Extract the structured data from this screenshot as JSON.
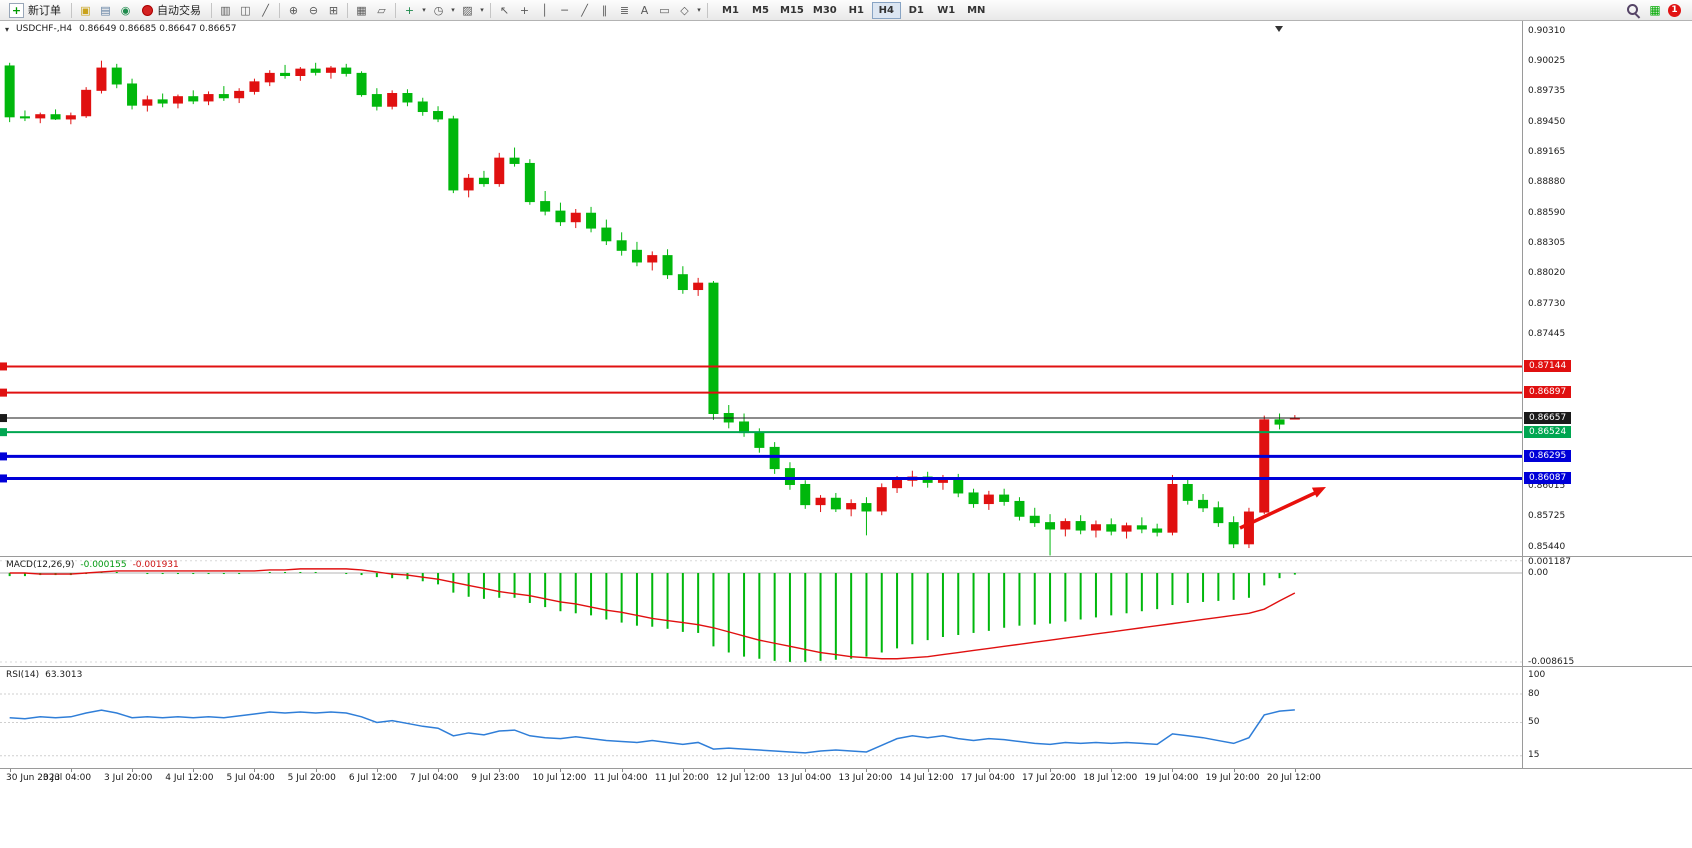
{
  "toolbar": {
    "new_order_label": "新订单",
    "autotrading_label": "自动交易",
    "timeframes": [
      "M1",
      "M5",
      "M15",
      "M30",
      "H1",
      "H4",
      "D1",
      "W1",
      "MN"
    ],
    "active_timeframe": "H4",
    "notification_count": "1"
  },
  "icons": {
    "new_order_plus": "+",
    "yellow_box": "▣",
    "printer": "▤",
    "refresh": "◉",
    "bar_chart": "▥",
    "candlestick_chart": "◫",
    "line_chart": "╱",
    "zoom_in": "⊕",
    "zoom_out": "⊖",
    "tile_windows": "⊞",
    "arrange_windows": "▦",
    "cascade_windows": "▱",
    "indicators_add": "+",
    "periods_clock": "◷",
    "templates": "▨",
    "cursor": "↖",
    "crosshair": "+",
    "vertical_line": "│",
    "horizontal_line": "─",
    "trendline": "╱",
    "channel": "∥",
    "fibonacci": "≣",
    "text_tool": "A",
    "label_tool": "▭",
    "shapes": "◇",
    "dropdown": "▾",
    "expand": "▾",
    "mini_chart": "▦",
    "shift_marker": "▼"
  },
  "chart": {
    "title": "USDCHF-,H4",
    "quote_ohlc": "0.86649 0.86685 0.86647 0.86657"
  },
  "chart_data": {
    "type": "candlestick",
    "symbol": "USDCHF-",
    "timeframe": "H4",
    "ohlc_current": {
      "open": 0.86649,
      "high": 0.86685,
      "low": 0.86647,
      "close": 0.86657
    },
    "colors": {
      "bull": "#e01010",
      "bear": "#00b70c"
    },
    "price_axis": {
      "max": 0.9031,
      "min": 0.8544,
      "labels": [
        "0.90310",
        "0.90025",
        "0.89735",
        "0.89450",
        "0.89165",
        "0.88880",
        "0.88590",
        "0.88305",
        "0.88020",
        "0.87730",
        "0.87445",
        "0.86015",
        "0.85725",
        "0.85440"
      ]
    },
    "levels": [
      {
        "price": 0.87144,
        "label": "0.87144",
        "color": "#e01010",
        "width": 2
      },
      {
        "price": 0.86897,
        "label": "0.86897",
        "color": "#e01010",
        "width": 2
      },
      {
        "price": 0.86657,
        "label": "0.86657",
        "color": "#1a1a1a",
        "width": 1
      },
      {
        "price": 0.86524,
        "label": "0.86524",
        "color": "#00a651",
        "width": 2
      },
      {
        "price": 0.86295,
        "label": "0.86295",
        "color": "#0000d8",
        "width": 3
      },
      {
        "price": 0.86087,
        "label": "0.86087",
        "color": "#0000d8",
        "width": 3
      }
    ],
    "time_labels": [
      "30 Jun 2023",
      "3 Jul 04:00",
      "3 Jul 20:00",
      "4 Jul 12:00",
      "5 Jul 04:00",
      "5 Jul 20:00",
      "6 Jul 12:00",
      "7 Jul 04:00",
      "9 Jul 23:00",
      "10 Jul 12:00",
      "11 Jul 04:00",
      "11 Jul 20:00",
      "12 Jul 12:00",
      "13 Jul 04:00",
      "13 Jul 20:00",
      "14 Jul 12:00",
      "17 Jul 04:00",
      "17 Jul 20:00",
      "18 Jul 12:00",
      "19 Jul 04:00",
      "19 Jul 20:00",
      "20 Jul 12:00"
    ],
    "candles": [
      [
        0.8998,
        0.9001,
        0.8945,
        0.895
      ],
      [
        0.895,
        0.8956,
        0.8946,
        0.8949
      ],
      [
        0.8949,
        0.8954,
        0.8944,
        0.8952
      ],
      [
        0.8952,
        0.8957,
        0.8947,
        0.8948
      ],
      [
        0.8948,
        0.8954,
        0.8943,
        0.8951
      ],
      [
        0.8951,
        0.8978,
        0.8949,
        0.8975
      ],
      [
        0.8975,
        0.9003,
        0.8972,
        0.8996
      ],
      [
        0.8996,
        0.9,
        0.8977,
        0.8981
      ],
      [
        0.8981,
        0.8986,
        0.8957,
        0.8961
      ],
      [
        0.8961,
        0.897,
        0.8955,
        0.8966
      ],
      [
        0.8966,
        0.8972,
        0.8959,
        0.8963
      ],
      [
        0.8963,
        0.8971,
        0.8958,
        0.8969
      ],
      [
        0.8969,
        0.8975,
        0.8962,
        0.8965
      ],
      [
        0.8965,
        0.8974,
        0.8961,
        0.8971
      ],
      [
        0.8971,
        0.8979,
        0.8965,
        0.8968
      ],
      [
        0.8968,
        0.8977,
        0.8963,
        0.8974
      ],
      [
        0.8974,
        0.8986,
        0.8971,
        0.8983
      ],
      [
        0.8983,
        0.8994,
        0.8979,
        0.8991
      ],
      [
        0.8991,
        0.8999,
        0.8986,
        0.8989
      ],
      [
        0.8989,
        0.8997,
        0.8984,
        0.8995
      ],
      [
        0.8995,
        0.9001,
        0.8989,
        0.8992
      ],
      [
        0.8992,
        0.8998,
        0.8986,
        0.8996
      ],
      [
        0.8996,
        0.9,
        0.8988,
        0.8991
      ],
      [
        0.8991,
        0.8993,
        0.8969,
        0.8971
      ],
      [
        0.8971,
        0.8977,
        0.8956,
        0.896
      ],
      [
        0.896,
        0.8975,
        0.8957,
        0.8972
      ],
      [
        0.8972,
        0.8976,
        0.896,
        0.8964
      ],
      [
        0.8964,
        0.8968,
        0.8951,
        0.8955
      ],
      [
        0.8955,
        0.896,
        0.8945,
        0.8948
      ],
      [
        0.8948,
        0.8951,
        0.8878,
        0.8881
      ],
      [
        0.8881,
        0.8896,
        0.8874,
        0.8892
      ],
      [
        0.8892,
        0.8899,
        0.8884,
        0.8887
      ],
      [
        0.8887,
        0.8916,
        0.8884,
        0.8911
      ],
      [
        0.8911,
        0.8921,
        0.8903,
        0.8906
      ],
      [
        0.8906,
        0.891,
        0.8867,
        0.887
      ],
      [
        0.887,
        0.888,
        0.8857,
        0.8861
      ],
      [
        0.8861,
        0.8869,
        0.8847,
        0.8851
      ],
      [
        0.8851,
        0.8863,
        0.8845,
        0.8859
      ],
      [
        0.8859,
        0.8865,
        0.8841,
        0.8845
      ],
      [
        0.8845,
        0.8853,
        0.8829,
        0.8833
      ],
      [
        0.8833,
        0.8841,
        0.8819,
        0.8824
      ],
      [
        0.8824,
        0.8832,
        0.8809,
        0.8813
      ],
      [
        0.8813,
        0.8823,
        0.8805,
        0.8819
      ],
      [
        0.8819,
        0.8825,
        0.8797,
        0.8801
      ],
      [
        0.8801,
        0.8809,
        0.8783,
        0.8787
      ],
      [
        0.8787,
        0.8798,
        0.8781,
        0.8793
      ],
      [
        0.8793,
        0.8795,
        0.8664,
        0.867
      ],
      [
        0.867,
        0.8678,
        0.8656,
        0.8662
      ],
      [
        0.8662,
        0.867,
        0.8648,
        0.8652
      ],
      [
        0.8652,
        0.8656,
        0.8633,
        0.8638
      ],
      [
        0.8638,
        0.8643,
        0.8613,
        0.8618
      ],
      [
        0.8618,
        0.8624,
        0.8598,
        0.8603
      ],
      [
        0.8603,
        0.8607,
        0.858,
        0.8584
      ],
      [
        0.8584,
        0.8593,
        0.8577,
        0.859
      ],
      [
        0.859,
        0.8595,
        0.8577,
        0.858
      ],
      [
        0.858,
        0.8589,
        0.8573,
        0.8585
      ],
      [
        0.8585,
        0.8591,
        0.8555,
        0.8578
      ],
      [
        0.8578,
        0.8604,
        0.8574,
        0.86
      ],
      [
        0.86,
        0.8611,
        0.8595,
        0.8607
      ],
      [
        0.8607,
        0.8616,
        0.8601,
        0.861
      ],
      [
        0.861,
        0.8615,
        0.86,
        0.8605
      ],
      [
        0.8605,
        0.8612,
        0.8598,
        0.8609
      ],
      [
        0.8609,
        0.8613,
        0.8591,
        0.8595
      ],
      [
        0.8595,
        0.8599,
        0.8581,
        0.8585
      ],
      [
        0.8585,
        0.8597,
        0.8579,
        0.8593
      ],
      [
        0.8593,
        0.8599,
        0.8583,
        0.8587
      ],
      [
        0.8587,
        0.8591,
        0.8569,
        0.8573
      ],
      [
        0.8573,
        0.8581,
        0.8563,
        0.8567
      ],
      [
        0.8567,
        0.8575,
        0.8536,
        0.8561
      ],
      [
        0.8561,
        0.8571,
        0.8554,
        0.8568
      ],
      [
        0.8568,
        0.8574,
        0.8556,
        0.856
      ],
      [
        0.856,
        0.8569,
        0.8553,
        0.8565
      ],
      [
        0.8565,
        0.8571,
        0.8555,
        0.8559
      ],
      [
        0.8559,
        0.8567,
        0.8552,
        0.8564
      ],
      [
        0.8564,
        0.8572,
        0.8557,
        0.8561
      ],
      [
        0.8561,
        0.8566,
        0.8554,
        0.8558
      ],
      [
        0.8558,
        0.8612,
        0.8555,
        0.8603
      ],
      [
        0.8603,
        0.8608,
        0.8584,
        0.8588
      ],
      [
        0.8588,
        0.8594,
        0.8577,
        0.8581
      ],
      [
        0.8581,
        0.8587,
        0.8563,
        0.8567
      ],
      [
        0.8567,
        0.8573,
        0.8543,
        0.8547
      ],
      [
        0.8547,
        0.8581,
        0.8543,
        0.8577
      ],
      [
        0.8577,
        0.8668,
        0.8575,
        0.8664
      ],
      [
        0.8664,
        0.867,
        0.8655,
        0.866
      ],
      [
        0.86649,
        0.86685,
        0.86647,
        0.86657
      ]
    ],
    "indicators": {
      "macd": {
        "name": "MACD(12,26,9)",
        "value_main": "-0.000155",
        "value_signal": "-0.001931",
        "hist_color": "#00b70c",
        "signal_color": "#e01010",
        "axis_labels": [
          "0.001187",
          "0.00",
          "-0.008615"
        ],
        "axis_values": [
          0.001187,
          0,
          -0.008615
        ],
        "histogram": [
          -0.0003,
          -0.0003,
          -0.0002,
          -0.0002,
          -0.0002,
          -0.0001,
          0.0001,
          0.0001,
          0.0,
          -0.0001,
          -0.0001,
          -0.0001,
          -0.0001,
          -0.0001,
          -0.0001,
          -0.0001,
          0.0,
          0.0001,
          0.0001,
          0.0001,
          0.0001,
          0.0,
          -0.0001,
          -0.0002,
          -0.0004,
          -0.0005,
          -0.0006,
          -0.0008,
          -0.0011,
          -0.0019,
          -0.0023,
          -0.0025,
          -0.0024,
          -0.0024,
          -0.0029,
          -0.0033,
          -0.0037,
          -0.0039,
          -0.0041,
          -0.0045,
          -0.0048,
          -0.0051,
          -0.0052,
          -0.0054,
          -0.0057,
          -0.0058,
          -0.0071,
          -0.0077,
          -0.0081,
          -0.0083,
          -0.0085,
          -0.0086,
          -0.0086,
          -0.0085,
          -0.0084,
          -0.0083,
          -0.0081,
          -0.0077,
          -0.0073,
          -0.0069,
          -0.0065,
          -0.0062,
          -0.006,
          -0.0058,
          -0.0056,
          -0.0053,
          -0.0051,
          -0.005,
          -0.0049,
          -0.0047,
          -0.0045,
          -0.0043,
          -0.0041,
          -0.0039,
          -0.0037,
          -0.0035,
          -0.0031,
          -0.0029,
          -0.0028,
          -0.0027,
          -0.0026,
          -0.0024,
          -0.0012,
          -0.0005,
          -0.000155
        ],
        "signal": [
          0.0,
          0.0,
          -0.0001,
          -0.0001,
          -0.0001,
          0.0,
          0.0001,
          0.0002,
          0.0002,
          0.0002,
          0.0002,
          0.0002,
          0.0002,
          0.0002,
          0.0002,
          0.0002,
          0.0002,
          0.0003,
          0.0003,
          0.0004,
          0.0004,
          0.0004,
          0.0004,
          0.0003,
          0.0001,
          -0.0001,
          -0.0002,
          -0.0004,
          -0.0006,
          -0.0009,
          -0.0012,
          -0.0015,
          -0.0018,
          -0.002,
          -0.0022,
          -0.0025,
          -0.0028,
          -0.003,
          -0.0033,
          -0.0036,
          -0.0038,
          -0.0041,
          -0.0044,
          -0.0046,
          -0.0048,
          -0.005,
          -0.0053,
          -0.0057,
          -0.0061,
          -0.0065,
          -0.0068,
          -0.0071,
          -0.0074,
          -0.0077,
          -0.0079,
          -0.0081,
          -0.0082,
          -0.0083,
          -0.0083,
          -0.0082,
          -0.0081,
          -0.0079,
          -0.0077,
          -0.0075,
          -0.0073,
          -0.0071,
          -0.0069,
          -0.0067,
          -0.0065,
          -0.0063,
          -0.0061,
          -0.0059,
          -0.0057,
          -0.0055,
          -0.0053,
          -0.0051,
          -0.0049,
          -0.0047,
          -0.0045,
          -0.0043,
          -0.0041,
          -0.0039,
          -0.0035,
          -0.0027,
          -0.001931
        ]
      },
      "rsi": {
        "name": "RSI(14)",
        "value": "63.3013",
        "color": "#2f7ed8",
        "axis_labels": [
          "100",
          "80",
          "50",
          "15"
        ],
        "axis_values": [
          100,
          80,
          50,
          15
        ],
        "values": [
          55,
          54,
          56,
          55,
          56,
          60,
          63,
          60,
          55,
          56,
          55,
          56,
          55,
          56,
          55,
          57,
          59,
          61,
          60,
          61,
          60,
          61,
          60,
          56,
          50,
          52,
          49,
          46,
          44,
          36,
          39,
          37,
          41,
          42,
          36,
          34,
          33,
          35,
          33,
          31,
          30,
          29,
          31,
          29,
          27,
          29,
          22,
          23,
          22,
          21,
          20,
          19,
          18,
          20,
          21,
          20,
          19,
          26,
          33,
          36,
          34,
          36,
          33,
          31,
          33,
          32,
          30,
          28,
          27,
          29,
          28,
          29,
          28,
          29,
          28,
          27,
          38,
          36,
          34,
          31,
          28,
          34,
          58,
          62,
          63.3
        ]
      }
    },
    "annotations": [
      {
        "type": "arrow",
        "color": "#e8100c"
      }
    ]
  }
}
